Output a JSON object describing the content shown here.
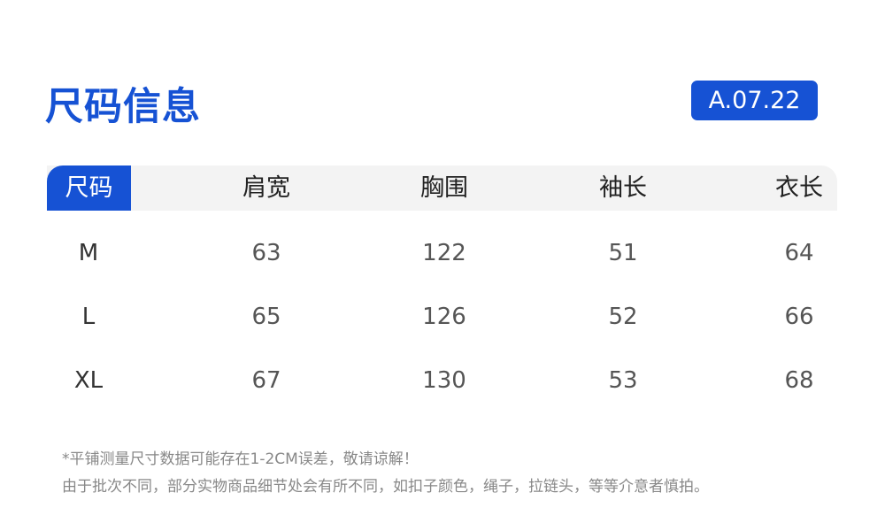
{
  "title": "尺码信息",
  "badge": "A.07.22",
  "colors": {
    "accent": "#1652d4",
    "header_bg": "#f3f3f3"
  },
  "table": {
    "headers": [
      "尺码",
      "肩宽",
      "胸围",
      "袖长",
      "衣长"
    ],
    "rows": [
      [
        "M",
        "63",
        "122",
        "51",
        "64"
      ],
      [
        "L",
        "65",
        "126",
        "52",
        "66"
      ],
      [
        "XL",
        "67",
        "130",
        "53",
        "68"
      ]
    ]
  },
  "notes": [
    "*平铺测量尺寸数据可能存在1-2CM误差，敬请谅解！",
    "由于批次不同，部分实物商品细节处会有所不同，如扣子颜色，绳子，拉链头，等等介意者慎拍。"
  ]
}
